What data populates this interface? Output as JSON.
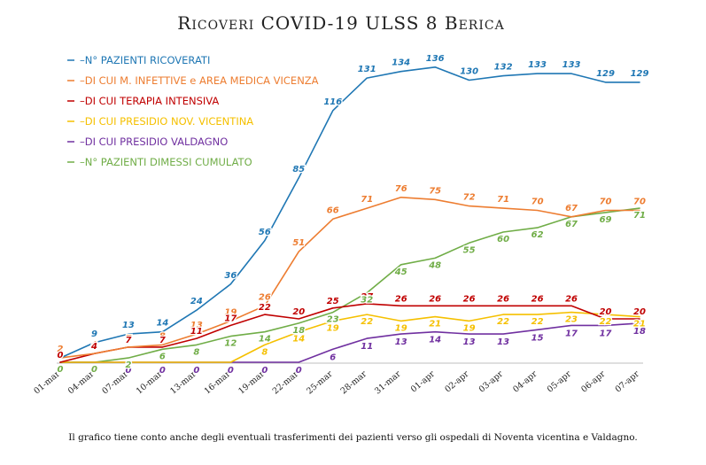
{
  "chart_data": {
    "type": "line",
    "title": "Ricoveri COVID-19 ULSS 8 Berica",
    "categories": [
      "01-mar",
      "04-mar",
      "07-mar",
      "10-mar",
      "13-mar",
      "16-mar",
      "19-mar",
      "22-mar",
      "25-mar",
      "28-mar",
      "31-mar",
      "01-apr",
      "02-apr",
      "03-apr",
      "04-apr",
      "05-apr",
      "06-apr",
      "07-apr"
    ],
    "ylim": [
      0,
      140
    ],
    "grid": false,
    "legend_position": "top-left",
    "series": [
      {
        "name": "N° PAZIENTI RICOVERATI",
        "legend_label": "–N° PAZIENTI RICOVERATI",
        "color": "#1f77b4",
        "values": [
          2,
          9,
          13,
          14,
          24,
          36,
          56,
          85,
          116,
          131,
          134,
          136,
          130,
          132,
          133,
          133,
          129,
          129
        ]
      },
      {
        "name": "DI CUI M. INFETTIVE e AREA MEDICA VICENZA",
        "legend_label": "–DI CUI M. INFETTIVE e AREA MEDICA VICENZA",
        "color": "#ed7d31",
        "values": [
          2,
          4,
          7,
          8,
          13,
          19,
          26,
          51,
          66,
          71,
          76,
          75,
          72,
          71,
          70,
          67,
          70,
          70
        ]
      },
      {
        "name": "DI CUI TERAPIA INTENSIVA",
        "legend_label": "–DI CUI TERAPIA INTENSIVA",
        "color": "#c00000",
        "values": [
          0,
          4,
          7,
          7,
          11,
          17,
          22,
          20,
          25,
          27,
          26,
          26,
          26,
          26,
          26,
          26,
          20,
          20
        ]
      },
      {
        "name": "DI CUI PRESIDIO NOV. VICENTINA",
        "legend_label": "–DI CUI PRESIDIO NOV. VICENTINA",
        "color": "#f5c000",
        "values": [
          0,
          0,
          0,
          0,
          0,
          0,
          8,
          14,
          19,
          22,
          19,
          21,
          19,
          22,
          22,
          23,
          22,
          21
        ]
      },
      {
        "name": "DI CUI PRESIDIO VALDAGNO",
        "legend_label": "–DI CUI PRESIDIO VALDAGNO",
        "color": "#7030a0",
        "values": [
          0,
          0,
          0,
          0,
          0,
          0,
          0,
          0,
          6,
          11,
          13,
          14,
          13,
          13,
          15,
          17,
          17,
          18
        ]
      },
      {
        "name": "N° PAZIENTI DIMESSI CUMULATO",
        "legend_label": "–N° PAZIENTI DIMESSI CUMULATO",
        "color": "#70ad47",
        "values": [
          0,
          0,
          2,
          6,
          8,
          12,
          14,
          18,
          23,
          32,
          45,
          48,
          55,
          60,
          62,
          67,
          69,
          71
        ]
      }
    ],
    "footnote": "Il grafico tiene conto anche degli eventuali trasferimenti dei pazienti verso gli ospedali di Noventa vicentina e Valdagno."
  }
}
